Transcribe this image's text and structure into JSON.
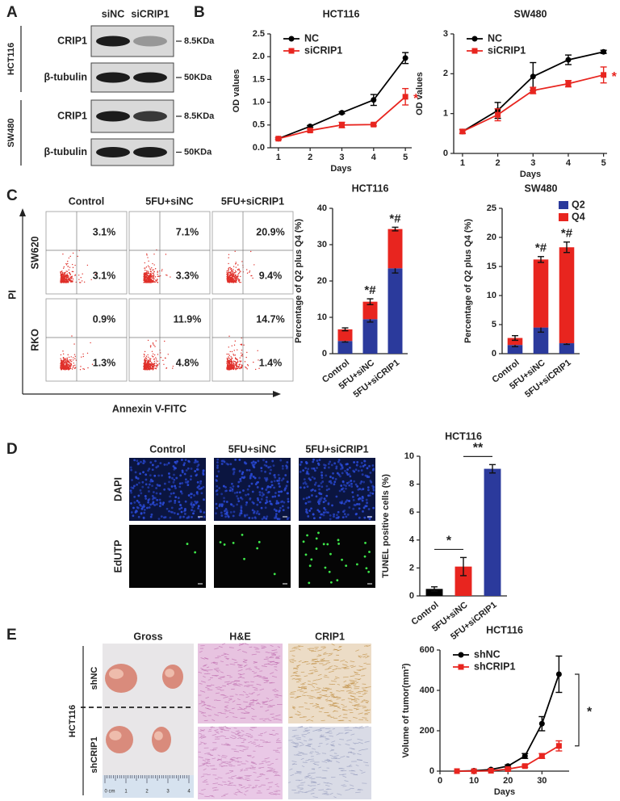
{
  "panels": {
    "labels": [
      "A",
      "B",
      "C",
      "D",
      "E"
    ]
  },
  "blot": {
    "columns": [
      "siNC",
      "siCRIP1"
    ],
    "groups": [
      {
        "name": "HCT116",
        "rows": [
          {
            "protein": "CRIP1",
            "size": "8.5KDa"
          },
          {
            "protein": "β-tubulin",
            "size": "50KDa"
          }
        ]
      },
      {
        "name": "SW480",
        "rows": [
          {
            "protein": "CRIP1",
            "size": "8.5KDa"
          },
          {
            "protein": "β-tubulin",
            "size": "50KDa"
          }
        ]
      }
    ]
  },
  "flow": {
    "columns": [
      "Control",
      "5FU+siNC",
      "5FU+siCRIP1"
    ],
    "rows": [
      {
        "name": "SW620",
        "upper": [
          "3.1%",
          "7.1%",
          "20.9%"
        ],
        "lower": [
          "3.1%",
          "3.3%",
          "9.4%"
        ]
      },
      {
        "name": "RKO",
        "upper": [
          "0.9%",
          "11.9%",
          "14.7%"
        ],
        "lower": [
          "1.3%",
          "4.8%",
          "1.4%"
        ]
      }
    ],
    "y_axis": "PI",
    "x_axis": "Annexin V-FITC"
  },
  "tunel": {
    "columns": [
      "Control",
      "5FU+siNC",
      "5FU+siCRIP1"
    ],
    "rows": [
      "DAPI",
      "EdUTP"
    ]
  },
  "xenograft": {
    "columns": [
      "Gross",
      "H&E",
      "CRIP1"
    ],
    "cell_line": "HCT116",
    "rows": [
      "shNC",
      "shCRIP1"
    ],
    "ruler": [
      "0 cm",
      "1",
      "2",
      "3",
      "4"
    ]
  },
  "chart_data": [
    {
      "type": "line",
      "title": "HCT116",
      "x_label": "Days",
      "y_label": "OD values",
      "x": [
        1,
        2,
        3,
        4,
        5
      ],
      "xlim": [
        0.75,
        5.2
      ],
      "xticks": [
        1,
        2,
        3,
        4,
        5
      ],
      "ylim": [
        0,
        2.5
      ],
      "yticks": [
        {
          "value": 0,
          "label": "0.0"
        },
        0.5,
        {
          "value": 1,
          "label": "1.0"
        },
        1.5,
        {
          "value": 2,
          "label": "2.0"
        },
        2.5
      ],
      "legend": "upper left",
      "series": [
        {
          "name": "NC",
          "color": "#000000",
          "marker": "circle",
          "values": [
            0.2,
            0.47,
            0.77,
            1.05,
            1.97
          ],
          "errors": [
            0.02,
            0.02,
            0.02,
            0.12,
            0.12
          ]
        },
        {
          "name": "siCRIP1",
          "color": "#e8251f",
          "marker": "square",
          "values": [
            0.2,
            0.38,
            0.5,
            0.51,
            1.12
          ],
          "errors": [
            0.02,
            0.03,
            0.06,
            0.03,
            0.18
          ],
          "annotation": "*"
        }
      ]
    },
    {
      "type": "line",
      "title": "SW480",
      "x_label": "Days",
      "y_label": "OD values",
      "x": [
        1,
        2,
        3,
        4,
        5
      ],
      "xlim": [
        0.75,
        5.1
      ],
      "xticks": [
        1,
        2,
        3,
        4,
        5
      ],
      "ylim": [
        0,
        3
      ],
      "yticks": [
        0,
        1,
        2,
        3
      ],
      "legend": "upper left",
      "series": [
        {
          "name": "NC",
          "color": "#000000",
          "marker": "circle",
          "values": [
            0.55,
            1.08,
            1.93,
            2.35,
            2.55
          ],
          "errors": [
            0.05,
            0.2,
            0.35,
            0.12,
            0.04
          ]
        },
        {
          "name": "siCRIP1",
          "color": "#e8251f",
          "marker": "square",
          "values": [
            0.55,
            0.97,
            1.58,
            1.75,
            1.97
          ],
          "errors": [
            0.05,
            0.15,
            0.08,
            0.08,
            0.2
          ],
          "annotation": "*"
        }
      ]
    },
    {
      "type": "stacked_bar",
      "title": "HCT116",
      "y_label": "Percentage of Q2 plus Q4 (%)",
      "categories": [
        "Control",
        "5FU+siNC",
        "5FU+siCRIP1"
      ],
      "ylim": [
        0,
        40
      ],
      "yticks": [
        0,
        10,
        20,
        30,
        40
      ],
      "annotations": [
        null,
        "*#",
        "*#"
      ],
      "series": [
        {
          "name": "Q2",
          "color": "#2b3a9c",
          "values": [
            3.5,
            9.5,
            23.5
          ],
          "errors": [
            0.3,
            0.8,
            1.3
          ]
        },
        {
          "name": "Q4",
          "color": "#e8251f",
          "values": [
            3.2,
            4.8,
            10.8
          ],
          "errors": [
            0.4,
            0.8,
            0.5
          ]
        }
      ]
    },
    {
      "type": "stacked_bar",
      "title": "SW480",
      "y_label": "Percentage of Q2 plus Q4 (%)",
      "categories": [
        "Control",
        "5FU+siNC",
        "5FU+siCRIP1"
      ],
      "ylim": [
        0,
        25
      ],
      "yticks": [
        0,
        5,
        10,
        15,
        20,
        25
      ],
      "annotations": [
        null,
        "*#",
        "*#"
      ],
      "legend": "upper right",
      "series": [
        {
          "name": "Q2",
          "color": "#2b3a9c",
          "values": [
            1.5,
            4.5,
            1.8
          ],
          "errors": [
            0.3,
            0.8,
            0.2
          ]
        },
        {
          "name": "Q4",
          "color": "#e8251f",
          "values": [
            1.2,
            11.7,
            16.5
          ],
          "errors": [
            0.4,
            0.5,
            0.9
          ]
        }
      ]
    },
    {
      "type": "bar",
      "title": "HCT116",
      "y_label": "TUNEL positive cells (%)",
      "categories": [
        "Control",
        "5FU+siNC",
        "5FU+siCRIP1"
      ],
      "values": [
        0.5,
        2.1,
        9.1
      ],
      "errors": [
        0.15,
        0.65,
        0.3
      ],
      "colors": [
        "#000000",
        "#e8251f",
        "#2b3a9c"
      ],
      "ylim": [
        0,
        10
      ],
      "yticks": [
        0,
        2,
        4,
        6,
        8,
        10
      ],
      "comparisons": [
        "*",
        "**"
      ]
    },
    {
      "type": "line",
      "title": "HCT116",
      "x_label": "Days",
      "y_label": "Volume of tumor(mm³)",
      "x": [
        5,
        10,
        15,
        20,
        25,
        30,
        35
      ],
      "xlim": [
        0,
        38
      ],
      "xticks": [
        0,
        10,
        20,
        30
      ],
      "ylim": [
        0,
        600
      ],
      "yticks": [
        0,
        200,
        400,
        600
      ],
      "legend": "upper left",
      "annotation": "*",
      "series": [
        {
          "name": "shNC",
          "color": "#000000",
          "marker": "circle",
          "values": [
            0,
            2,
            8,
            25,
            75,
            235,
            480
          ],
          "errors": [
            0,
            2,
            4,
            6,
            12,
            35,
            90
          ]
        },
        {
          "name": "shCRIP1",
          "color": "#e8251f",
          "marker": "square",
          "values": [
            0,
            0,
            2,
            10,
            25,
            75,
            125
          ],
          "errors": [
            0,
            0,
            2,
            4,
            6,
            12,
            25
          ]
        }
      ]
    }
  ]
}
